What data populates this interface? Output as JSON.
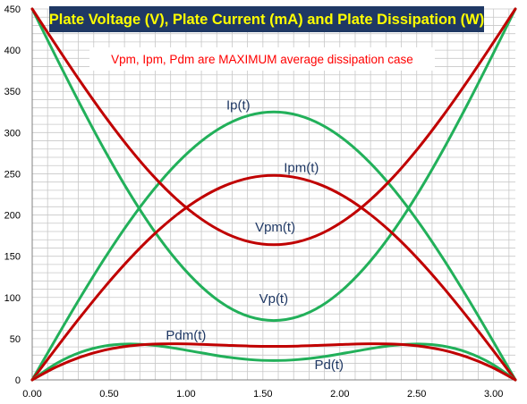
{
  "chart_data": {
    "type": "line",
    "title": "Plate Voltage (V), Plate Current (mA) and Plate Dissipation (W)",
    "annotation": "Vpm, Ipm, Pdm  are MAXIMUM average dissipation case",
    "xlim": [
      0,
      3.1416
    ],
    "ylim": [
      0,
      450
    ],
    "x_ticks": [
      0,
      0.5,
      1.0,
      1.5,
      2.0,
      2.5,
      3.0
    ],
    "x_tick_labels": [
      "0.00",
      "0.50",
      "1.00",
      "1.50",
      "2.00",
      "2.50",
      "3.00"
    ],
    "y_ticks": [
      0,
      50,
      100,
      150,
      200,
      250,
      300,
      350,
      400,
      450
    ],
    "y_tick_labels": [
      "0",
      "50",
      "100",
      "150",
      "200",
      "250",
      "300",
      "350",
      "400",
      "450"
    ],
    "grid": true,
    "colors": {
      "green": "#22b05a",
      "red": "#c00000",
      "title_bg": "#1f3864",
      "title_text": "#ffff00",
      "annotation_text": "#ff0000",
      "label_text": "#1f3864",
      "grid": "#c8c8c8"
    },
    "x": [
      0,
      0.1571,
      0.3142,
      0.4712,
      0.6283,
      0.7854,
      0.9425,
      1.0996,
      1.2566,
      1.4137,
      1.5708,
      1.7279,
      1.885,
      2.042,
      2.1991,
      2.3562,
      2.5133,
      2.6704,
      2.8274,
      2.9845,
      3.1416
    ],
    "series": [
      {
        "name": "Ip(t)",
        "color": "#22b05a",
        "values": [
          0,
          50.8,
          100.4,
          147.5,
          191.0,
          229.8,
          262.9,
          289.6,
          309.1,
          321.0,
          325.0,
          321.0,
          309.1,
          289.6,
          262.9,
          229.8,
          191.0,
          147.5,
          100.4,
          50.8,
          0
        ]
      },
      {
        "name": "Vp(t)",
        "color": "#22b05a",
        "values": [
          450,
          390.9,
          333.3,
          278.5,
          227.9,
          182.7,
          144.2,
          113.2,
          90.4,
          76.6,
          72.0,
          76.6,
          90.4,
          113.2,
          144.2,
          182.7,
          227.9,
          278.5,
          333.3,
          390.9,
          450
        ]
      },
      {
        "name": "Ipm(t)",
        "color": "#c00000",
        "values": [
          0,
          38.8,
          76.6,
          112.6,
          145.8,
          175.4,
          200.6,
          221.0,
          235.9,
          245.0,
          248.0,
          245.0,
          235.9,
          221.0,
          200.6,
          175.4,
          145.8,
          112.6,
          76.6,
          38.8,
          0
        ]
      },
      {
        "name": "Vpm(t)",
        "color": "#c00000",
        "values": [
          450,
          405.3,
          361.6,
          320.2,
          281.9,
          247.7,
          218.5,
          195.1,
          177.9,
          167.5,
          164.0,
          167.5,
          177.9,
          195.1,
          218.5,
          247.7,
          281.9,
          320.2,
          361.6,
          405.3,
          450
        ]
      },
      {
        "name": "Pd(t)",
        "color": "#22b05a",
        "values": [
          0,
          19.9,
          33.5,
          41.1,
          43.5,
          42.0,
          37.9,
          32.8,
          27.9,
          24.6,
          23.4,
          24.6,
          27.9,
          32.8,
          37.9,
          42.0,
          43.5,
          41.1,
          33.5,
          19.9,
          0
        ]
      },
      {
        "name": "Pdm(t)",
        "color": "#c00000",
        "values": [
          0,
          15.7,
          27.7,
          36.1,
          41.1,
          43.4,
          43.8,
          43.1,
          42.0,
          41.0,
          40.7,
          41.0,
          42.0,
          43.1,
          43.8,
          43.4,
          41.1,
          36.1,
          27.7,
          15.7,
          0
        ]
      }
    ],
    "curve_labels": [
      {
        "text": "Ip(t)",
        "x": 1.34,
        "y": 328
      },
      {
        "text": "Ipm(t)",
        "x": 1.75,
        "y": 252
      },
      {
        "text": "Vpm(t)",
        "x": 1.58,
        "y": 180
      },
      {
        "text": "Vp(t)",
        "x": 1.57,
        "y": 93
      },
      {
        "text": "Pdm(t)",
        "x": 1.0,
        "y": 49
      },
      {
        "text": "Pd(t)",
        "x": 1.93,
        "y": 13
      }
    ]
  }
}
